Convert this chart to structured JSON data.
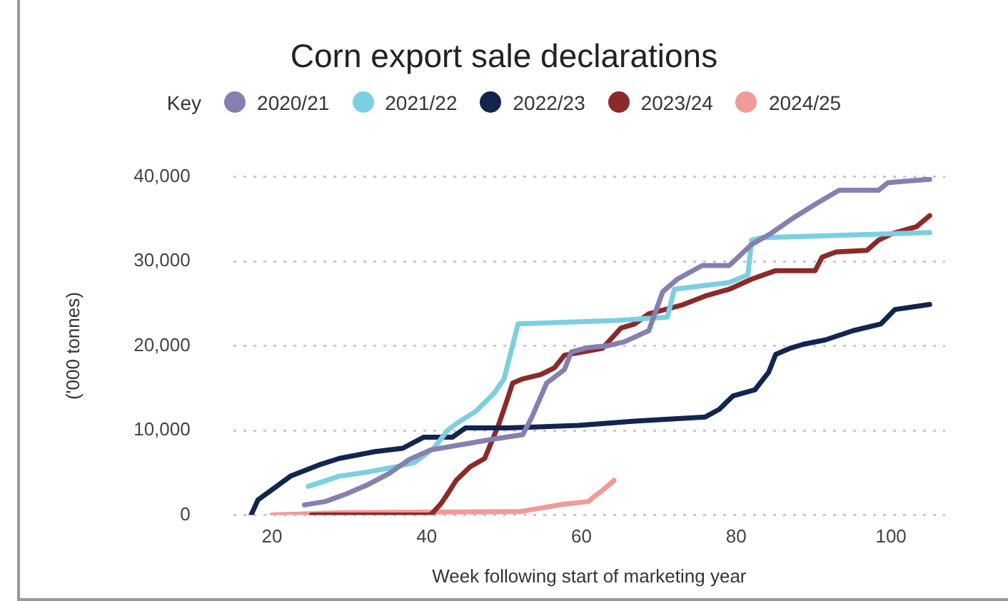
{
  "chart_data": {
    "type": "line",
    "title": "Corn export sale declarations",
    "xlabel": "Week following start of marketing year",
    "ylabel": "('000 tonnes)",
    "legend_title": "Key",
    "legend": "top",
    "grid": "y",
    "xlim": [
      15,
      107
    ],
    "xticks": [
      20,
      40,
      60,
      80,
      100
    ],
    "ylim": [
      0,
      40000
    ],
    "yticks": [
      {
        "value": 0,
        "label": "0"
      },
      {
        "value": 10000,
        "label": "10,000"
      },
      {
        "value": 20000,
        "label": "20,000"
      },
      {
        "value": 30000,
        "label": "30,000"
      },
      {
        "value": 40000,
        "label": "40,000"
      }
    ],
    "series": [
      {
        "name": "2020/21",
        "color": "#8480b0",
        "x": [
          24.2,
          26.9,
          29.6,
          32.4,
          35.1,
          37.8,
          40.5,
          45,
          48.7,
          52.4,
          53.6,
          55.5,
          57.8,
          58.7,
          60.9,
          63.3,
          65.6,
          68.7,
          70.5,
          72.4,
          75.6,
          79.1,
          82,
          84.5,
          87.5,
          90.5,
          93.3,
          98.4,
          99.6,
          105
        ],
        "values": [
          1200,
          1600,
          2500,
          3600,
          4900,
          6600,
          7700,
          8400,
          9000,
          9500,
          11600,
          15600,
          17200,
          19300,
          19800,
          20000,
          20500,
          21800,
          26400,
          27900,
          29500,
          29500,
          32000,
          33300,
          35200,
          36900,
          38400,
          38400,
          39300,
          39700
        ]
      },
      {
        "name": "2021/22",
        "color": "#7ccfe0",
        "x": [
          24.7,
          28.7,
          32.4,
          36,
          38.4,
          40.9,
          42.7,
          43.8,
          46.4,
          48.7,
          50,
          51.8,
          64.5,
          71.1,
          72,
          79.1,
          81.5,
          82,
          83.3,
          105
        ],
        "values": [
          3400,
          4600,
          5100,
          5700,
          6200,
          7900,
          10000,
          10800,
          12300,
          14400,
          16100,
          22600,
          23000,
          23400,
          26700,
          27500,
          28400,
          32500,
          32800,
          33400
        ]
      },
      {
        "name": "2022/23",
        "color": "#13254f",
        "x": [
          17.3,
          18.2,
          20,
          22.4,
          26,
          28.7,
          33.3,
          36.9,
          39.6,
          43.3,
          45,
          50.5,
          59.6,
          66.9,
          76,
          77.8,
          79.6,
          82.4,
          84.2,
          85.1,
          86.9,
          88.7,
          91.5,
          95.1,
          98.7,
          100.5,
          105
        ],
        "values": [
          0,
          1800,
          3000,
          4600,
          5900,
          6700,
          7500,
          7900,
          9200,
          9200,
          10300,
          10300,
          10600,
          11100,
          11600,
          12500,
          14100,
          14800,
          16900,
          19000,
          19700,
          20200,
          20700,
          21800,
          22600,
          24300,
          24900
        ]
      },
      {
        "name": "2023/24",
        "color": "#8b2a2a",
        "x": [
          25.1,
          40.5,
          41.8,
          42.7,
          43.8,
          45.6,
          47.5,
          49.3,
          50.5,
          51.1,
          52.4,
          54.7,
          56.5,
          57.8,
          62.7,
          65.1,
          66.9,
          68.7,
          72.9,
          76,
          79.1,
          82,
          85.1,
          90.2,
          91.1,
          92.9,
          96.9,
          98.4,
          100.2,
          103.3,
          105
        ],
        "values": [
          0,
          0,
          1300,
          2500,
          4100,
          5700,
          6700,
          10700,
          13900,
          15600,
          16100,
          16600,
          17400,
          18900,
          19700,
          22100,
          22600,
          23800,
          24800,
          25900,
          26700,
          27900,
          28900,
          28900,
          30500,
          31100,
          31300,
          32500,
          33300,
          34100,
          35400
        ]
      },
      {
        "name": "2024/25",
        "color": "#f09a9a",
        "x": [
          20,
          30,
          52,
          57.8,
          60.9,
          61.5,
          62.7,
          64.2
        ],
        "values": [
          0,
          300,
          400,
          1300,
          1600,
          2100,
          2900,
          4100
        ]
      }
    ]
  }
}
